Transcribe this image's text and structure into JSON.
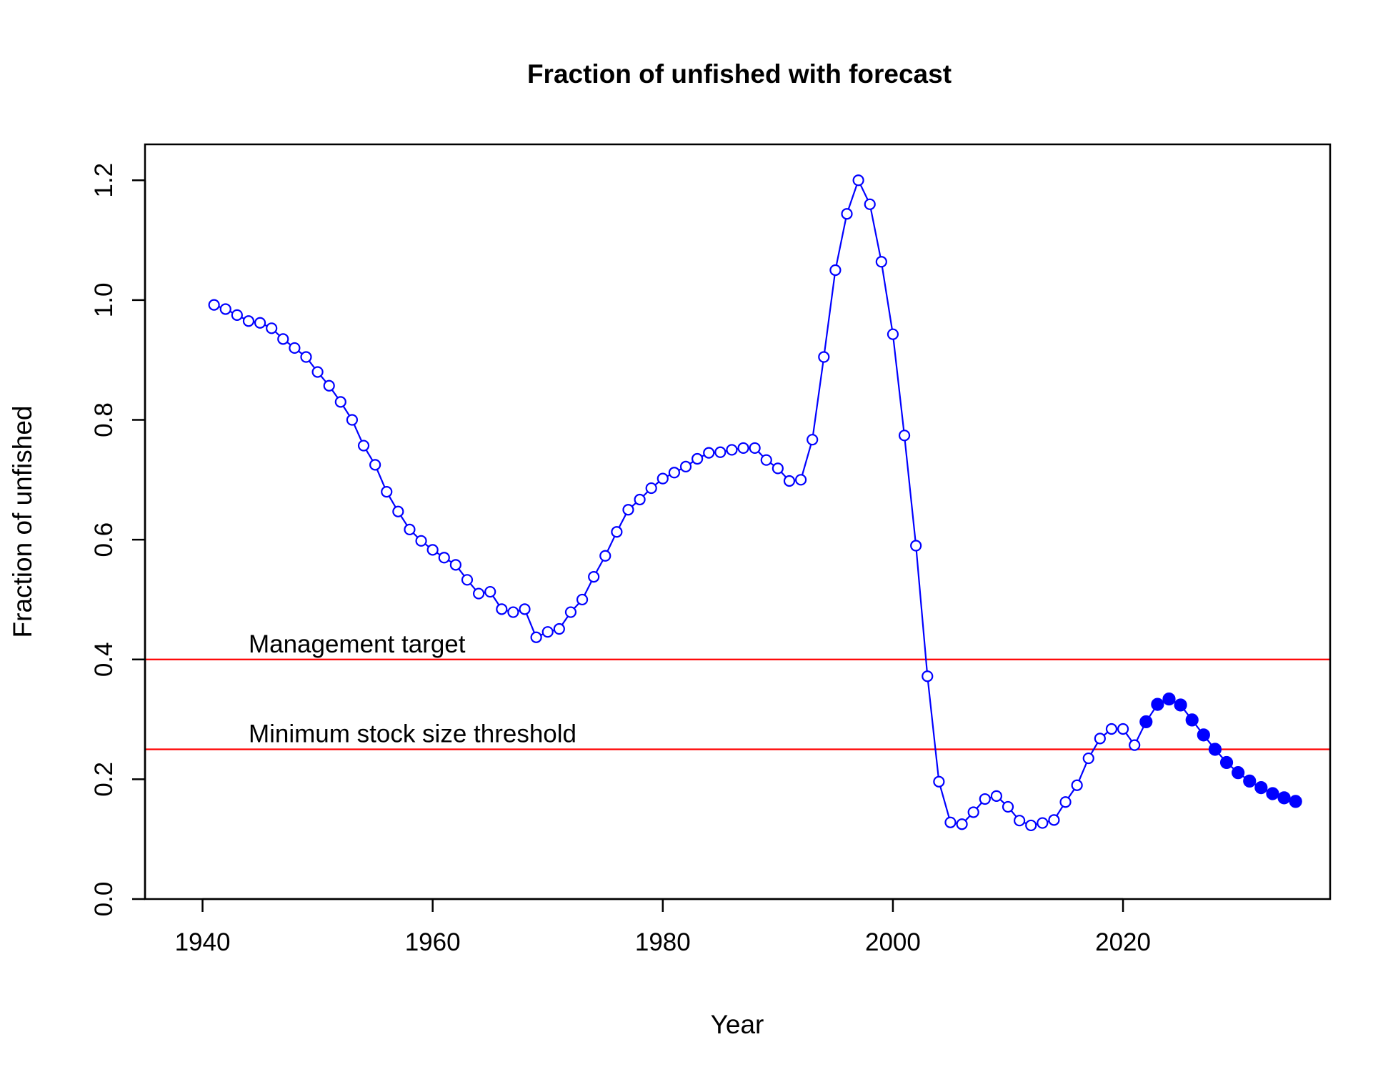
{
  "chart_data": {
    "type": "line",
    "title": "Fraction of unfished with forecast",
    "xlabel": "Year",
    "ylabel": "Fraction of unfished",
    "xlim": [
      1935,
      2038
    ],
    "ylim": [
      0,
      1.26
    ],
    "x_ticks": [
      1940,
      1960,
      1980,
      2000,
      2020
    ],
    "y_ticks": [
      0.0,
      0.2,
      0.4,
      0.6,
      0.8,
      1.0,
      1.2
    ],
    "x_tick_labels": [
      "1940",
      "1960",
      "1980",
      "2000",
      "2020"
    ],
    "y_tick_labels": [
      "0.0",
      "0.2",
      "0.4",
      "0.6",
      "0.8",
      "1.0",
      "1.2"
    ],
    "grid": false,
    "series": [
      {
        "kind": "historical",
        "color": "#0000ff",
        "marker": "open-circle",
        "x": [
          1941,
          1942,
          1943,
          1944,
          1945,
          1946,
          1947,
          1948,
          1949,
          1950,
          1951,
          1952,
          1953,
          1954,
          1955,
          1956,
          1957,
          1958,
          1959,
          1960,
          1961,
          1962,
          1963,
          1964,
          1965,
          1966,
          1967,
          1968,
          1969,
          1970,
          1971,
          1972,
          1973,
          1974,
          1975,
          1976,
          1977,
          1978,
          1979,
          1980,
          1981,
          1982,
          1983,
          1984,
          1985,
          1986,
          1987,
          1988,
          1989,
          1990,
          1991,
          1992,
          1993,
          1994,
          1995,
          1996,
          1997,
          1998,
          1999,
          2000,
          2001,
          2002,
          2003,
          2004,
          2005,
          2006,
          2007,
          2008,
          2009,
          2010,
          2011,
          2012,
          2013,
          2014,
          2015,
          2016,
          2017,
          2018,
          2019,
          2020,
          2021
        ],
        "y": [
          0.992,
          0.985,
          0.975,
          0.965,
          0.962,
          0.953,
          0.935,
          0.92,
          0.905,
          0.88,
          0.857,
          0.83,
          0.8,
          0.757,
          0.725,
          0.68,
          0.647,
          0.617,
          0.598,
          0.583,
          0.57,
          0.558,
          0.533,
          0.51,
          0.513,
          0.484,
          0.479,
          0.484,
          0.437,
          0.446,
          0.451,
          0.479,
          0.5,
          0.538,
          0.573,
          0.613,
          0.65,
          0.667,
          0.686,
          0.702,
          0.712,
          0.722,
          0.735,
          0.745,
          0.746,
          0.75,
          0.753,
          0.753,
          0.733,
          0.719,
          0.698,
          0.7,
          0.767,
          0.905,
          1.05,
          1.144,
          1.2,
          1.16,
          1.064,
          0.943,
          0.774,
          0.59,
          0.372,
          0.196,
          0.128,
          0.125,
          0.145,
          0.167,
          0.172,
          0.154,
          0.131,
          0.123,
          0.127,
          0.132,
          0.162,
          0.19,
          0.235,
          0.268,
          0.284,
          0.284,
          0.257
        ]
      },
      {
        "kind": "forecast",
        "color": "#0000ff",
        "marker": "filled-circle",
        "x": [
          2022,
          2023,
          2024,
          2025,
          2026,
          2027,
          2028,
          2029,
          2030,
          2031,
          2032,
          2033,
          2034,
          2035
        ],
        "y": [
          0.296,
          0.325,
          0.334,
          0.324,
          0.299,
          0.274,
          0.25,
          0.228,
          0.211,
          0.197,
          0.186,
          0.176,
          0.169,
          0.163
        ]
      }
    ],
    "reference_lines": [
      {
        "y": 0.4,
        "color": "#ff0000",
        "label": "Management target",
        "label_x": 1944
      },
      {
        "y": 0.25,
        "color": "#ff0000",
        "label": "Minimum stock size threshold",
        "label_x": 1944
      }
    ]
  }
}
